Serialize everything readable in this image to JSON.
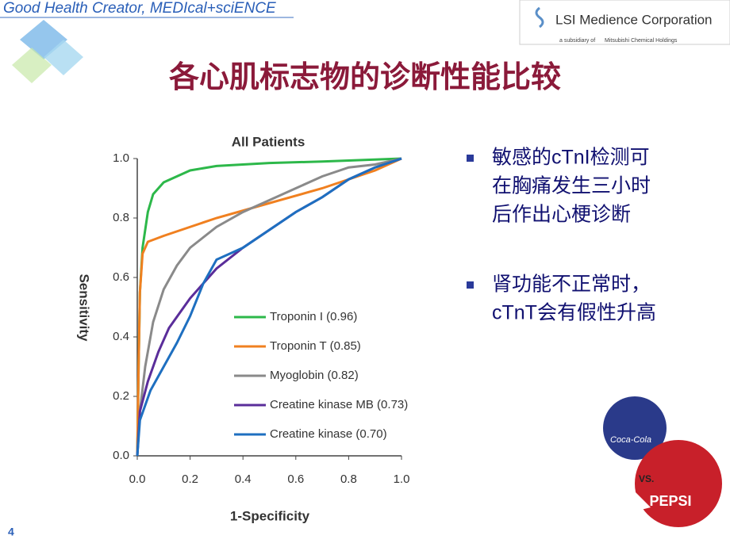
{
  "header": {
    "tagline": "Good Health Creator, MEDIcal+sciENCE",
    "logo": "LSI Medience Corporation",
    "logo_sub": "a subsidiary of",
    "logo_parent": "Mitsubishi Chemical Holdings"
  },
  "title": "各心肌标志物的诊断性能比较",
  "bullets": [
    [
      "敏感的cTnI检测可",
      "在胸痛发生三小时",
      "后作出心梗诊断"
    ],
    [
      "肾功能不正常时，",
      "cTnT会有假性升高"
    ]
  ],
  "image_labels": [
    "Coca-Cola",
    "VS.",
    "PEPSI"
  ],
  "page_number": "4",
  "chart_data": {
    "type": "line",
    "title": "All Patients",
    "x_label": "1-Specificity",
    "y_label": "Sensitivity",
    "xlim": [
      0,
      1
    ],
    "ylim": [
      0,
      1
    ],
    "xticks": [
      {
        "value": 0,
        "label": "0.0"
      },
      0.2,
      0.4,
      0.6,
      0.8,
      {
        "value": 1,
        "label": "1.0"
      }
    ],
    "yticks": [
      {
        "value": 0,
        "label": "0.0"
      },
      0.2,
      0.4,
      0.6,
      0.8,
      {
        "value": 1,
        "label": "1.0"
      }
    ],
    "legend": "lower right",
    "series": [
      {
        "name": "Troponin I (0.96)",
        "color": "#2db84a",
        "x": [
          0,
          0.005,
          0.01,
          0.02,
          0.04,
          0.06,
          0.1,
          0.2,
          0.3,
          0.5,
          0.7,
          1
        ],
        "values": [
          0,
          0.3,
          0.55,
          0.7,
          0.82,
          0.88,
          0.92,
          0.96,
          0.975,
          0.985,
          0.99,
          1
        ]
      },
      {
        "name": "Troponin T (0.85)",
        "color": "#f08020",
        "x": [
          0,
          0.005,
          0.01,
          0.02,
          0.04,
          0.1,
          0.2,
          0.3,
          0.5,
          0.7,
          0.9,
          1
        ],
        "values": [
          0,
          0.3,
          0.55,
          0.68,
          0.72,
          0.74,
          0.77,
          0.8,
          0.85,
          0.9,
          0.96,
          1
        ]
      },
      {
        "name": "Myoglobin (0.82)",
        "color": "#8a8a8a",
        "x": [
          0,
          0.01,
          0.03,
          0.06,
          0.1,
          0.15,
          0.2,
          0.3,
          0.4,
          0.5,
          0.6,
          0.7,
          0.8,
          0.9,
          1
        ],
        "values": [
          0,
          0.15,
          0.3,
          0.45,
          0.56,
          0.64,
          0.7,
          0.77,
          0.82,
          0.86,
          0.9,
          0.94,
          0.97,
          0.98,
          1
        ]
      },
      {
        "name": "Creatine kinase MB (0.73)",
        "color": "#5a2d9a",
        "x": [
          0,
          0.01,
          0.04,
          0.08,
          0.12,
          0.2,
          0.3,
          0.4,
          0.5,
          0.6,
          0.7,
          0.8,
          0.9,
          1
        ],
        "values": [
          0,
          0.15,
          0.25,
          0.35,
          0.43,
          0.53,
          0.63,
          0.7,
          0.76,
          0.82,
          0.87,
          0.93,
          0.97,
          1
        ]
      },
      {
        "name": "Creatine kinase (0.70)",
        "color": "#1e6fc0",
        "x": [
          0,
          0.01,
          0.05,
          0.1,
          0.15,
          0.2,
          0.25,
          0.3,
          0.4,
          0.5,
          0.6,
          0.7,
          0.8,
          0.9,
          1
        ],
        "values": [
          0,
          0.12,
          0.22,
          0.3,
          0.38,
          0.47,
          0.58,
          0.66,
          0.7,
          0.76,
          0.82,
          0.87,
          0.93,
          0.97,
          1
        ]
      }
    ]
  }
}
